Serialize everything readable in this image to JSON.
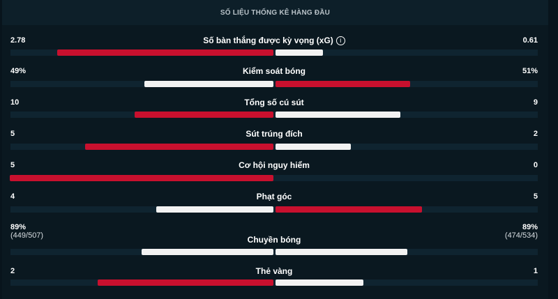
{
  "header": {
    "title": "SỐ LIỆU THỐNG KÊ HÀNG ĐẦU"
  },
  "colors": {
    "leader": "#c8102e",
    "trailer": "#f2f2f2",
    "track": "#0f2430"
  },
  "stats": [
    {
      "label": "Số bàn thắng được kỳ vọng (xG)",
      "info_icon": "info-icon",
      "home": "2.78",
      "away": "0.61",
      "home_value": 2.78,
      "away_value": 0.61
    },
    {
      "label": "Kiểm soát bóng",
      "home": "49%",
      "away": "51%",
      "home_value": 49,
      "away_value": 51
    },
    {
      "label": "Tổng số cú sút",
      "home": "10",
      "away": "9",
      "home_value": 10,
      "away_value": 9
    },
    {
      "label": "Sút trúng đích",
      "home": "5",
      "away": "2",
      "home_value": 5,
      "away_value": 2
    },
    {
      "label": "Cơ hội nguy hiểm",
      "home": "5",
      "away": "0",
      "home_value": 5,
      "away_value": 0
    },
    {
      "label": "Phạt góc",
      "home": "4",
      "away": "5",
      "home_value": 4,
      "away_value": 5
    },
    {
      "label": "Chuyền bóng",
      "home": "89%",
      "away": "89%",
      "home_sub": "(449/507)",
      "away_sub": "(474/534)",
      "home_value": 89,
      "away_value": 89
    },
    {
      "label": "Thẻ vàng",
      "home": "2",
      "away": "1",
      "home_value": 2,
      "away_value": 1
    }
  ]
}
